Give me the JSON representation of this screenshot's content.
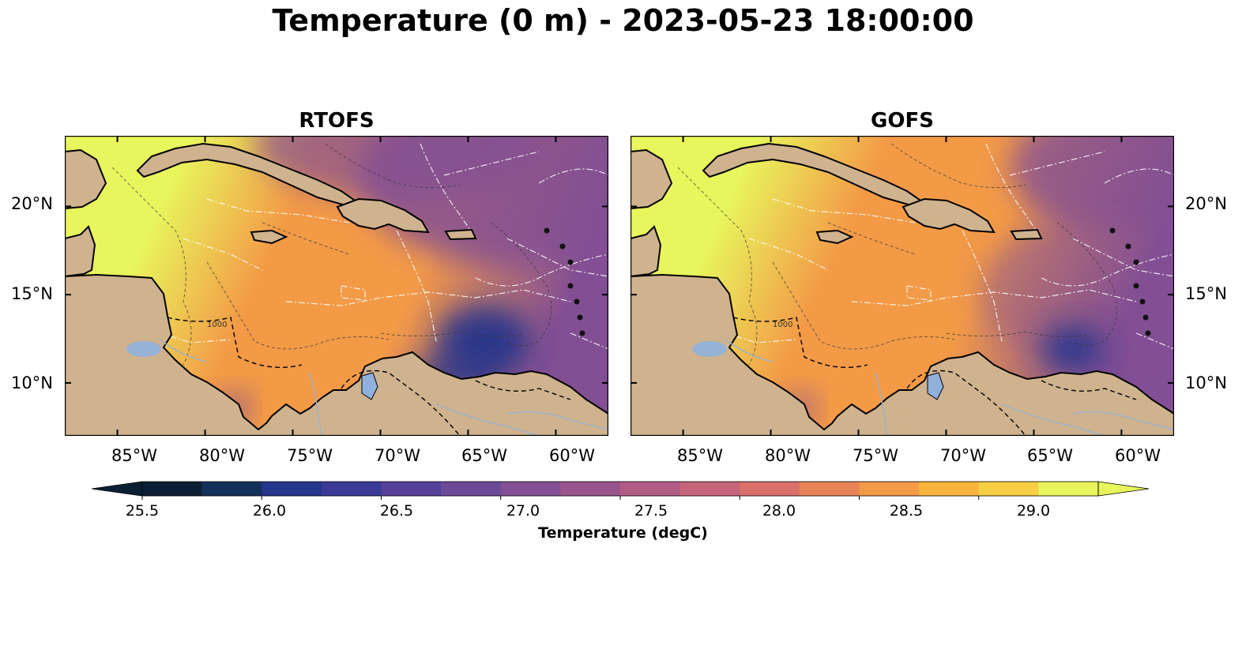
{
  "title": "Temperature (0 m) - 2023-05-23 18:00:00",
  "panels": [
    {
      "title": "RTOFS",
      "variant": "rtofs"
    },
    {
      "title": "GOFS",
      "variant": "gofs"
    }
  ],
  "axes": {
    "lon_ticks": [
      "85°W",
      "80°W",
      "75°W",
      "70°W",
      "65°W",
      "60°W"
    ],
    "lat_ticks": [
      "20°N",
      "15°N",
      "10°N"
    ],
    "lon_values": [
      -85,
      -80,
      -75,
      -70,
      -65,
      -60
    ],
    "lat_values": [
      20,
      15,
      10
    ],
    "lon_range": [
      -88,
      -57
    ],
    "lat_range": [
      7,
      24
    ]
  },
  "colorbar": {
    "label": "Temperature (degC)",
    "tick_labels": [
      "25.5",
      "26.0",
      "26.5",
      "27.0",
      "27.5",
      "28.0",
      "28.5",
      "29.0"
    ],
    "levels": [
      25.5,
      25.75,
      26.0,
      26.25,
      26.5,
      26.75,
      27.0,
      27.25,
      27.5,
      27.75,
      28.0,
      28.25,
      28.5,
      28.75,
      29.0,
      29.25
    ],
    "colors": [
      "#0c2035",
      "#13305a",
      "#25368c",
      "#3b3a97",
      "#55409a",
      "#6c4a98",
      "#834f94",
      "#9a558d",
      "#b15c85",
      "#c6647a",
      "#d9706a",
      "#e88357",
      "#f39a47",
      "#f8b43d",
      "#f7ce44",
      "#e8f55c"
    ],
    "extend": "both"
  },
  "contour_label": "1000",
  "colors": {
    "land": "#cfb38e",
    "lake": "#8fb1dc",
    "hot": "#e8f55c",
    "warm": "#f39a47",
    "mid": "#834f94",
    "cool": "#25368c"
  }
}
